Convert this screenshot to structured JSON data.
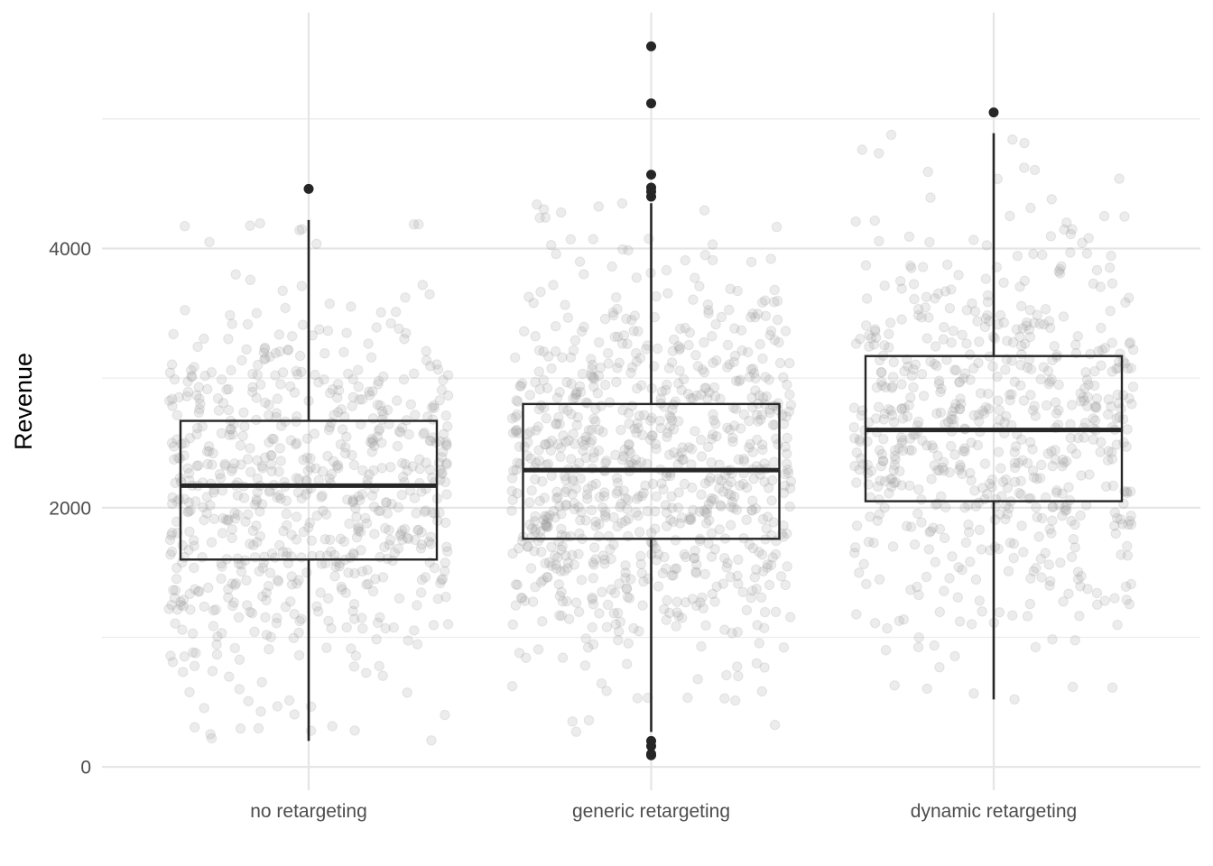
{
  "chart_data": {
    "type": "boxplot",
    "title": "",
    "xlabel": "",
    "ylabel": "Revenue",
    "ylim": [
      -180,
      5820
    ],
    "yticks": [
      0,
      2000,
      4000
    ],
    "grid": true,
    "categories": [
      "no retargeting",
      "generic retargeting",
      "dynamic retargeting"
    ],
    "boxes": [
      {
        "category": "no retargeting",
        "whisker_low": 200,
        "q1": 1600,
        "median": 2170,
        "q3": 2670,
        "whisker_high": 4220,
        "outliers": [
          4460
        ],
        "n_points": 700
      },
      {
        "category": "generic retargeting",
        "whisker_low": 270,
        "q1": 1760,
        "median": 2290,
        "q3": 2800,
        "whisker_high": 4350,
        "outliers": [
          5560,
          5120,
          4570,
          4470,
          4440,
          4400,
          200,
          160,
          90,
          100
        ],
        "n_points": 850
      },
      {
        "category": "dynamic retargeting",
        "whisker_low": 520,
        "q1": 2050,
        "median": 2600,
        "q3": 3170,
        "whisker_high": 4890,
        "outliers": [
          5050
        ],
        "n_points": 650
      }
    ],
    "colors": {
      "box": "#262626",
      "points": "#9e9e9e",
      "grid": "#e5e5e5",
      "tick_text": "#4d4d4d"
    }
  }
}
